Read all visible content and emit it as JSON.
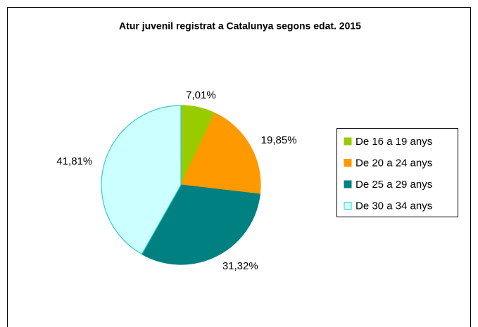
{
  "chart_data": {
    "type": "pie",
    "title": "Atur juvenil registrat a Catalunya segons edat. 2015",
    "categories": [
      "De 16 a 19 anys",
      "De 20 a 24 anys",
      "De 25 a 29 anys",
      "De 30 a 34 anys"
    ],
    "values": [
      7.01,
      19.85,
      31.32,
      41.81
    ],
    "value_labels": [
      "7,01%",
      "19,85%",
      "31,32%",
      "41,81%"
    ],
    "colors": [
      "#99cc00",
      "#ff9900",
      "#008080",
      "#ccffff"
    ],
    "legend": "right"
  }
}
